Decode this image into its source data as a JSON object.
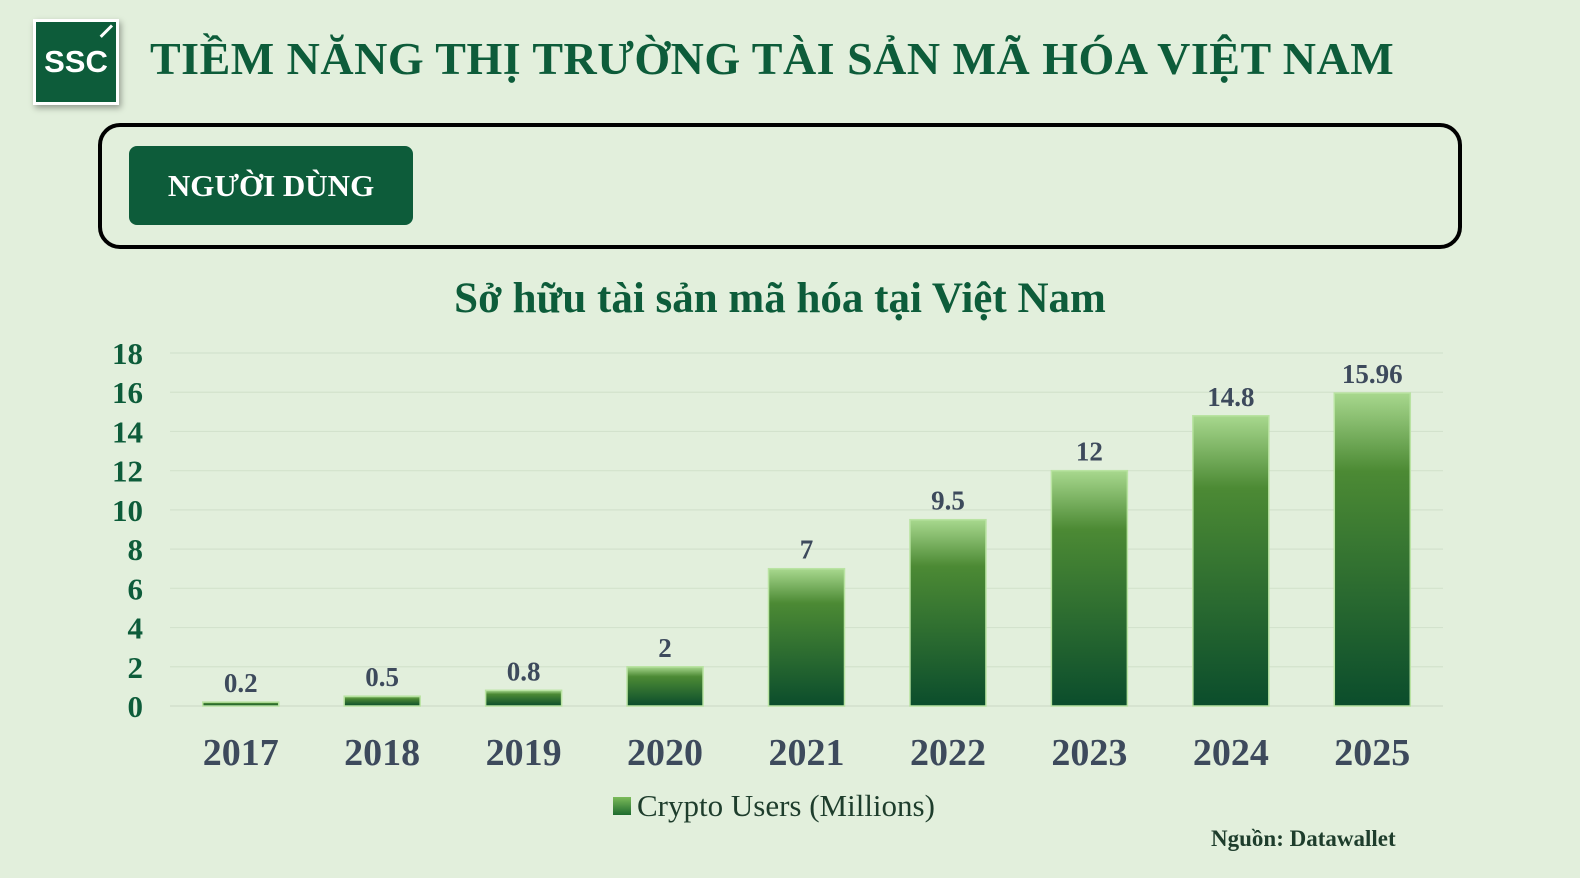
{
  "header": {
    "logo_text": "SSC",
    "title": "TIỀM NĂNG THỊ TRƯỜNG TÀI SẢN MÃ HÓA VIỆT NAM"
  },
  "section": {
    "tab_label": "NGƯỜI DÙNG"
  },
  "colors": {
    "brand": "#0d5c3a",
    "background": "#e2efdc",
    "bar_top": "#a8d88e",
    "bar_bottom": "#0b4d2c",
    "axis_text": "#0d5c3a",
    "label_text": "#3d4a5c"
  },
  "chart_data": {
    "type": "bar",
    "title": "Sở hữu tài sản mã hóa tại Việt Nam",
    "categories": [
      "2017",
      "2018",
      "2019",
      "2020",
      "2021",
      "2022",
      "2023",
      "2024",
      "2025"
    ],
    "series": [
      {
        "name": "Crypto Users (Millions)",
        "values": [
          0.2,
          0.5,
          0.8,
          2,
          7,
          9.5,
          12,
          14.8,
          15.96
        ]
      }
    ],
    "data_labels": [
      "0.2",
      "0.5",
      "0.8",
      "2",
      "7",
      "9.5",
      "12",
      "14.8",
      "15.96"
    ],
    "y_ticks": [
      "0",
      "2",
      "4",
      "6",
      "8",
      "10",
      "12",
      "14",
      "16",
      "18"
    ],
    "ylim": [
      0,
      18
    ],
    "grid": true,
    "legend": "bottom"
  },
  "source": "Nguồn: Datawallet"
}
